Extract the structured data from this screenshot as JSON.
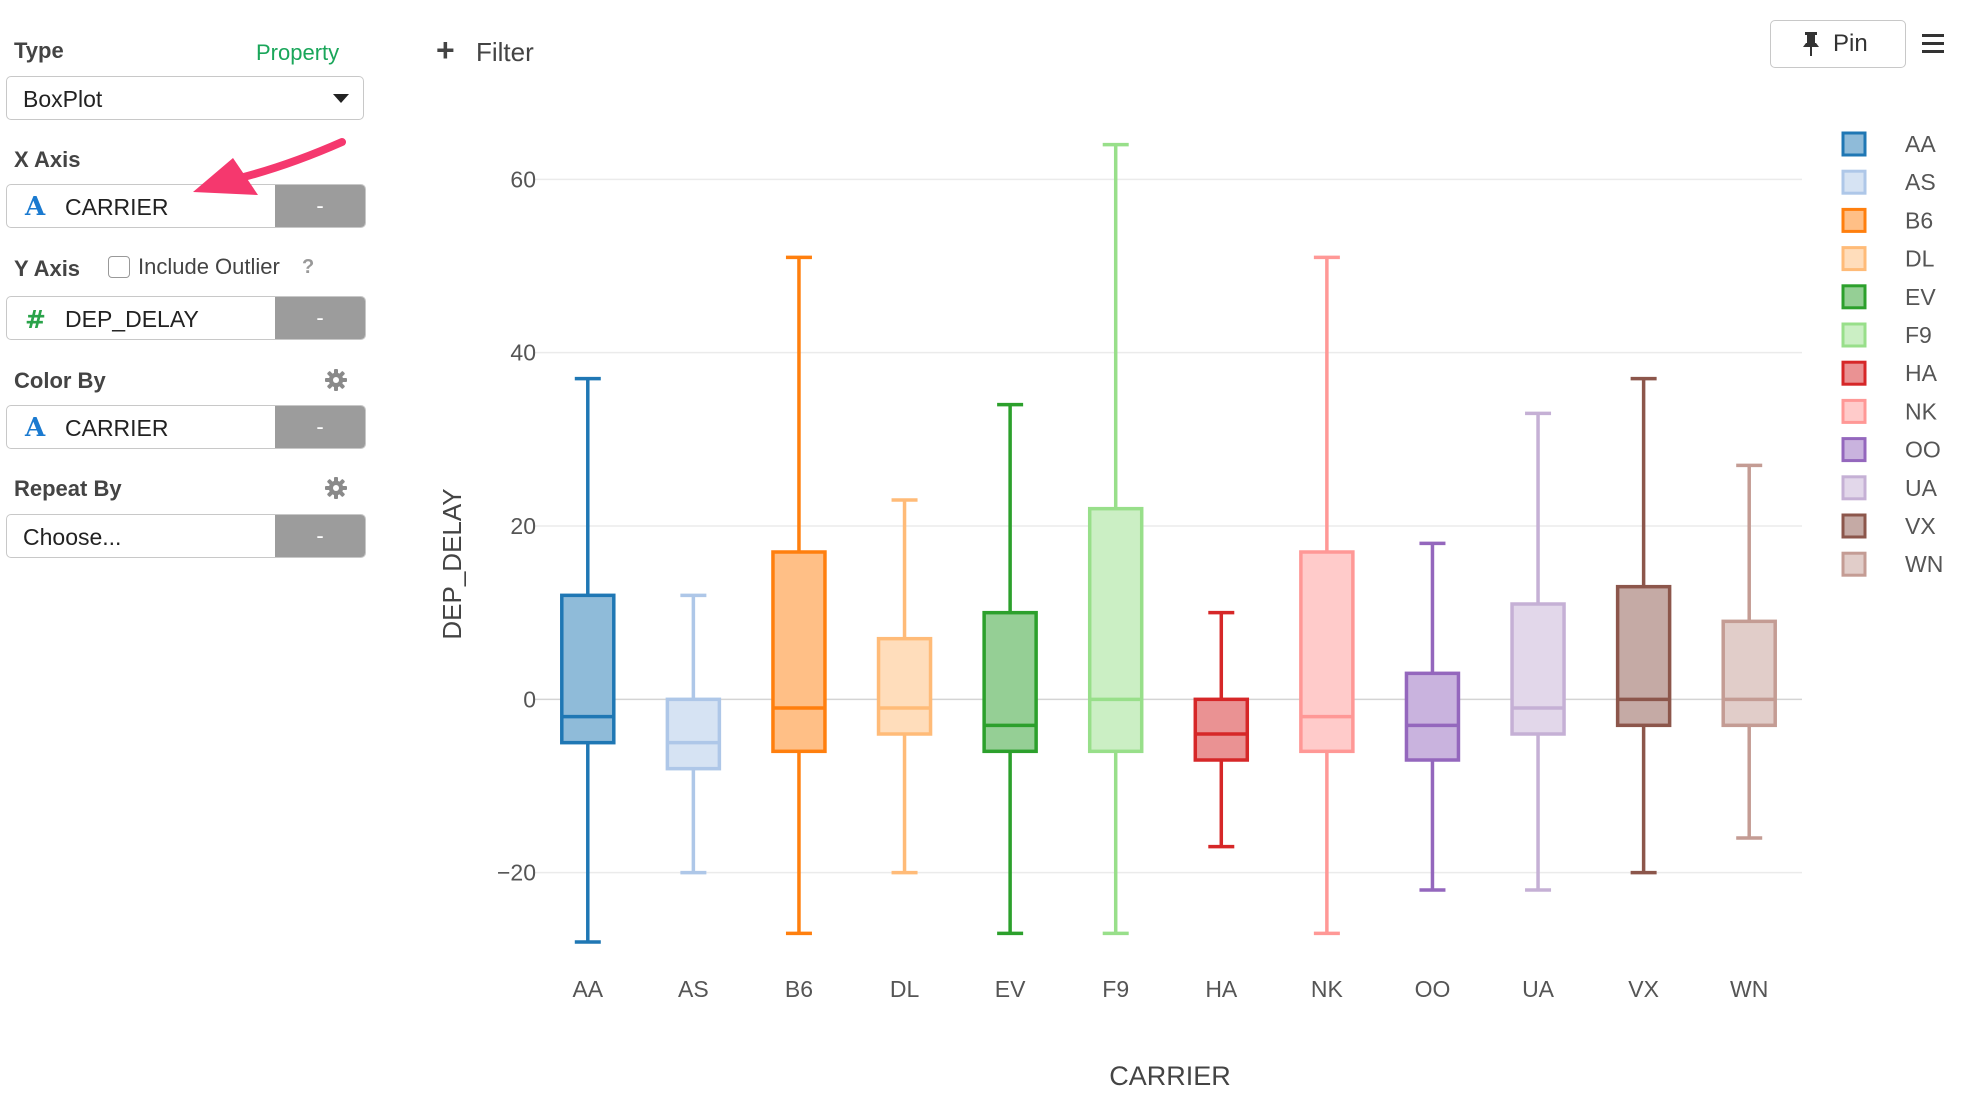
{
  "panel": {
    "type_label": "Type",
    "property_link": "Property",
    "type_value": "BoxPlot",
    "xaxis_label": "X Axis",
    "xaxis_field": "CARRIER",
    "xaxis_field_icon": "string-type-icon",
    "yaxis_label": "Y Axis",
    "include_outlier_label": "Include Outlier",
    "include_outlier_checked": false,
    "help_glyph": "?",
    "yaxis_field": "DEP_DELAY",
    "yaxis_field_icon": "numeric-type-icon",
    "colorby_label": "Color By",
    "colorby_field": "CARRIER",
    "repeatby_label": "Repeat By",
    "repeatby_placeholder": "Choose...",
    "remove_label": "-"
  },
  "topbar": {
    "filter_label": "Filter",
    "pin_label": "Pin"
  },
  "colors": {
    "accent_green": "#1aa65a",
    "string_icon": "#1a7ad0",
    "numeric_icon": "#2aa34a",
    "arrow": "#f5386e"
  },
  "chart_data": {
    "type": "boxplot",
    "xlabel": "CARRIER",
    "ylabel": "DEP_DELAY",
    "ylim": [
      -31,
      68
    ],
    "yticks": [
      -20,
      0,
      20,
      40,
      60
    ],
    "grid": true,
    "legend_position": "right",
    "categories": [
      "AA",
      "AS",
      "B6",
      "DL",
      "EV",
      "F9",
      "HA",
      "NK",
      "OO",
      "UA",
      "VX",
      "WN"
    ],
    "series": [
      {
        "name": "AA",
        "color": "#1f77b4",
        "fill": "#8fbbd9",
        "min": -28,
        "q1": -5,
        "median": -2,
        "q3": 12,
        "max": 37
      },
      {
        "name": "AS",
        "color": "#aec7e8",
        "fill": "#d6e3f3",
        "min": -20,
        "q1": -8,
        "median": -5,
        "q3": 0,
        "max": 12
      },
      {
        "name": "B6",
        "color": "#ff7f0e",
        "fill": "#ffbf86",
        "min": -27,
        "q1": -6,
        "median": -1,
        "q3": 17,
        "max": 51
      },
      {
        "name": "DL",
        "color": "#ffbb78",
        "fill": "#ffddbb",
        "min": -20,
        "q1": -4,
        "median": -1,
        "q3": 7,
        "max": 23
      },
      {
        "name": "EV",
        "color": "#2ca02c",
        "fill": "#95cf95",
        "min": -27,
        "q1": -6,
        "median": -3,
        "q3": 10,
        "max": 34
      },
      {
        "name": "F9",
        "color": "#98df8a",
        "fill": "#cbefc4",
        "min": -27,
        "q1": -6,
        "median": 0,
        "q3": 22,
        "max": 64
      },
      {
        "name": "HA",
        "color": "#d62728",
        "fill": "#ea9293",
        "min": -17,
        "q1": -7,
        "median": -4,
        "q3": 0,
        "max": 10
      },
      {
        "name": "NK",
        "color": "#ff9896",
        "fill": "#ffcbca",
        "min": -27,
        "q1": -6,
        "median": -2,
        "q3": 17,
        "max": 51
      },
      {
        "name": "OO",
        "color": "#9467bd",
        "fill": "#c9b3de",
        "min": -22,
        "q1": -7,
        "median": -3,
        "q3": 3,
        "max": 18
      },
      {
        "name": "UA",
        "color": "#c5b0d5",
        "fill": "#e2d7ea",
        "min": -22,
        "q1": -4,
        "median": -1,
        "q3": 11,
        "max": 33
      },
      {
        "name": "VX",
        "color": "#8c564b",
        "fill": "#c5aaa5",
        "min": -20,
        "q1": -3,
        "median": 0,
        "q3": 13,
        "max": 37
      },
      {
        "name": "WN",
        "color": "#c49c94",
        "fill": "#e1cdc9",
        "min": -16,
        "q1": -3,
        "median": 0,
        "q3": 9,
        "max": 27
      }
    ]
  }
}
